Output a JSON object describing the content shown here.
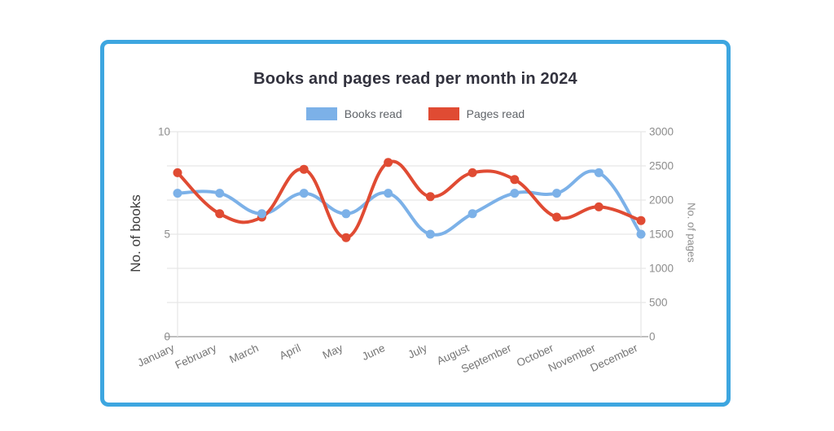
{
  "card": {
    "border_color": "#3da6e0",
    "background": "#ffffff"
  },
  "chart_data": {
    "type": "line",
    "title": "Books and pages read per month in 2024",
    "categories": [
      "January",
      "February",
      "March",
      "April",
      "May",
      "June",
      "July",
      "August",
      "September",
      "October",
      "November",
      "December"
    ],
    "series": [
      {
        "name": "Books read",
        "color": "#7cb1e8",
        "y_axis": "left",
        "values": [
          7,
          7,
          6,
          7,
          6,
          7,
          5,
          6,
          7,
          7,
          8,
          5
        ]
      },
      {
        "name": "Pages read",
        "color": "#e04b33",
        "y_axis": "right",
        "values": [
          2400,
          1800,
          1750,
          2450,
          1450,
          2550,
          2050,
          2400,
          2300,
          1750,
          1900,
          1700
        ]
      }
    ],
    "y_left": {
      "label": "No. of books",
      "min": 0,
      "max": 10,
      "ticks": [
        0,
        5,
        10
      ]
    },
    "y_right": {
      "label": "No. of pages",
      "min": 0,
      "max": 3000,
      "ticks": [
        0,
        500,
        1000,
        1500,
        2000,
        2500,
        3000
      ]
    },
    "legend_position": "top",
    "grid": true,
    "line_style": "smooth",
    "colors": {
      "gridline": "#e7e7e7",
      "baseline": "#a8a8a8",
      "tick_text": "#8d8d8d",
      "month_text": "#757575",
      "title_text": "#32323e"
    }
  }
}
